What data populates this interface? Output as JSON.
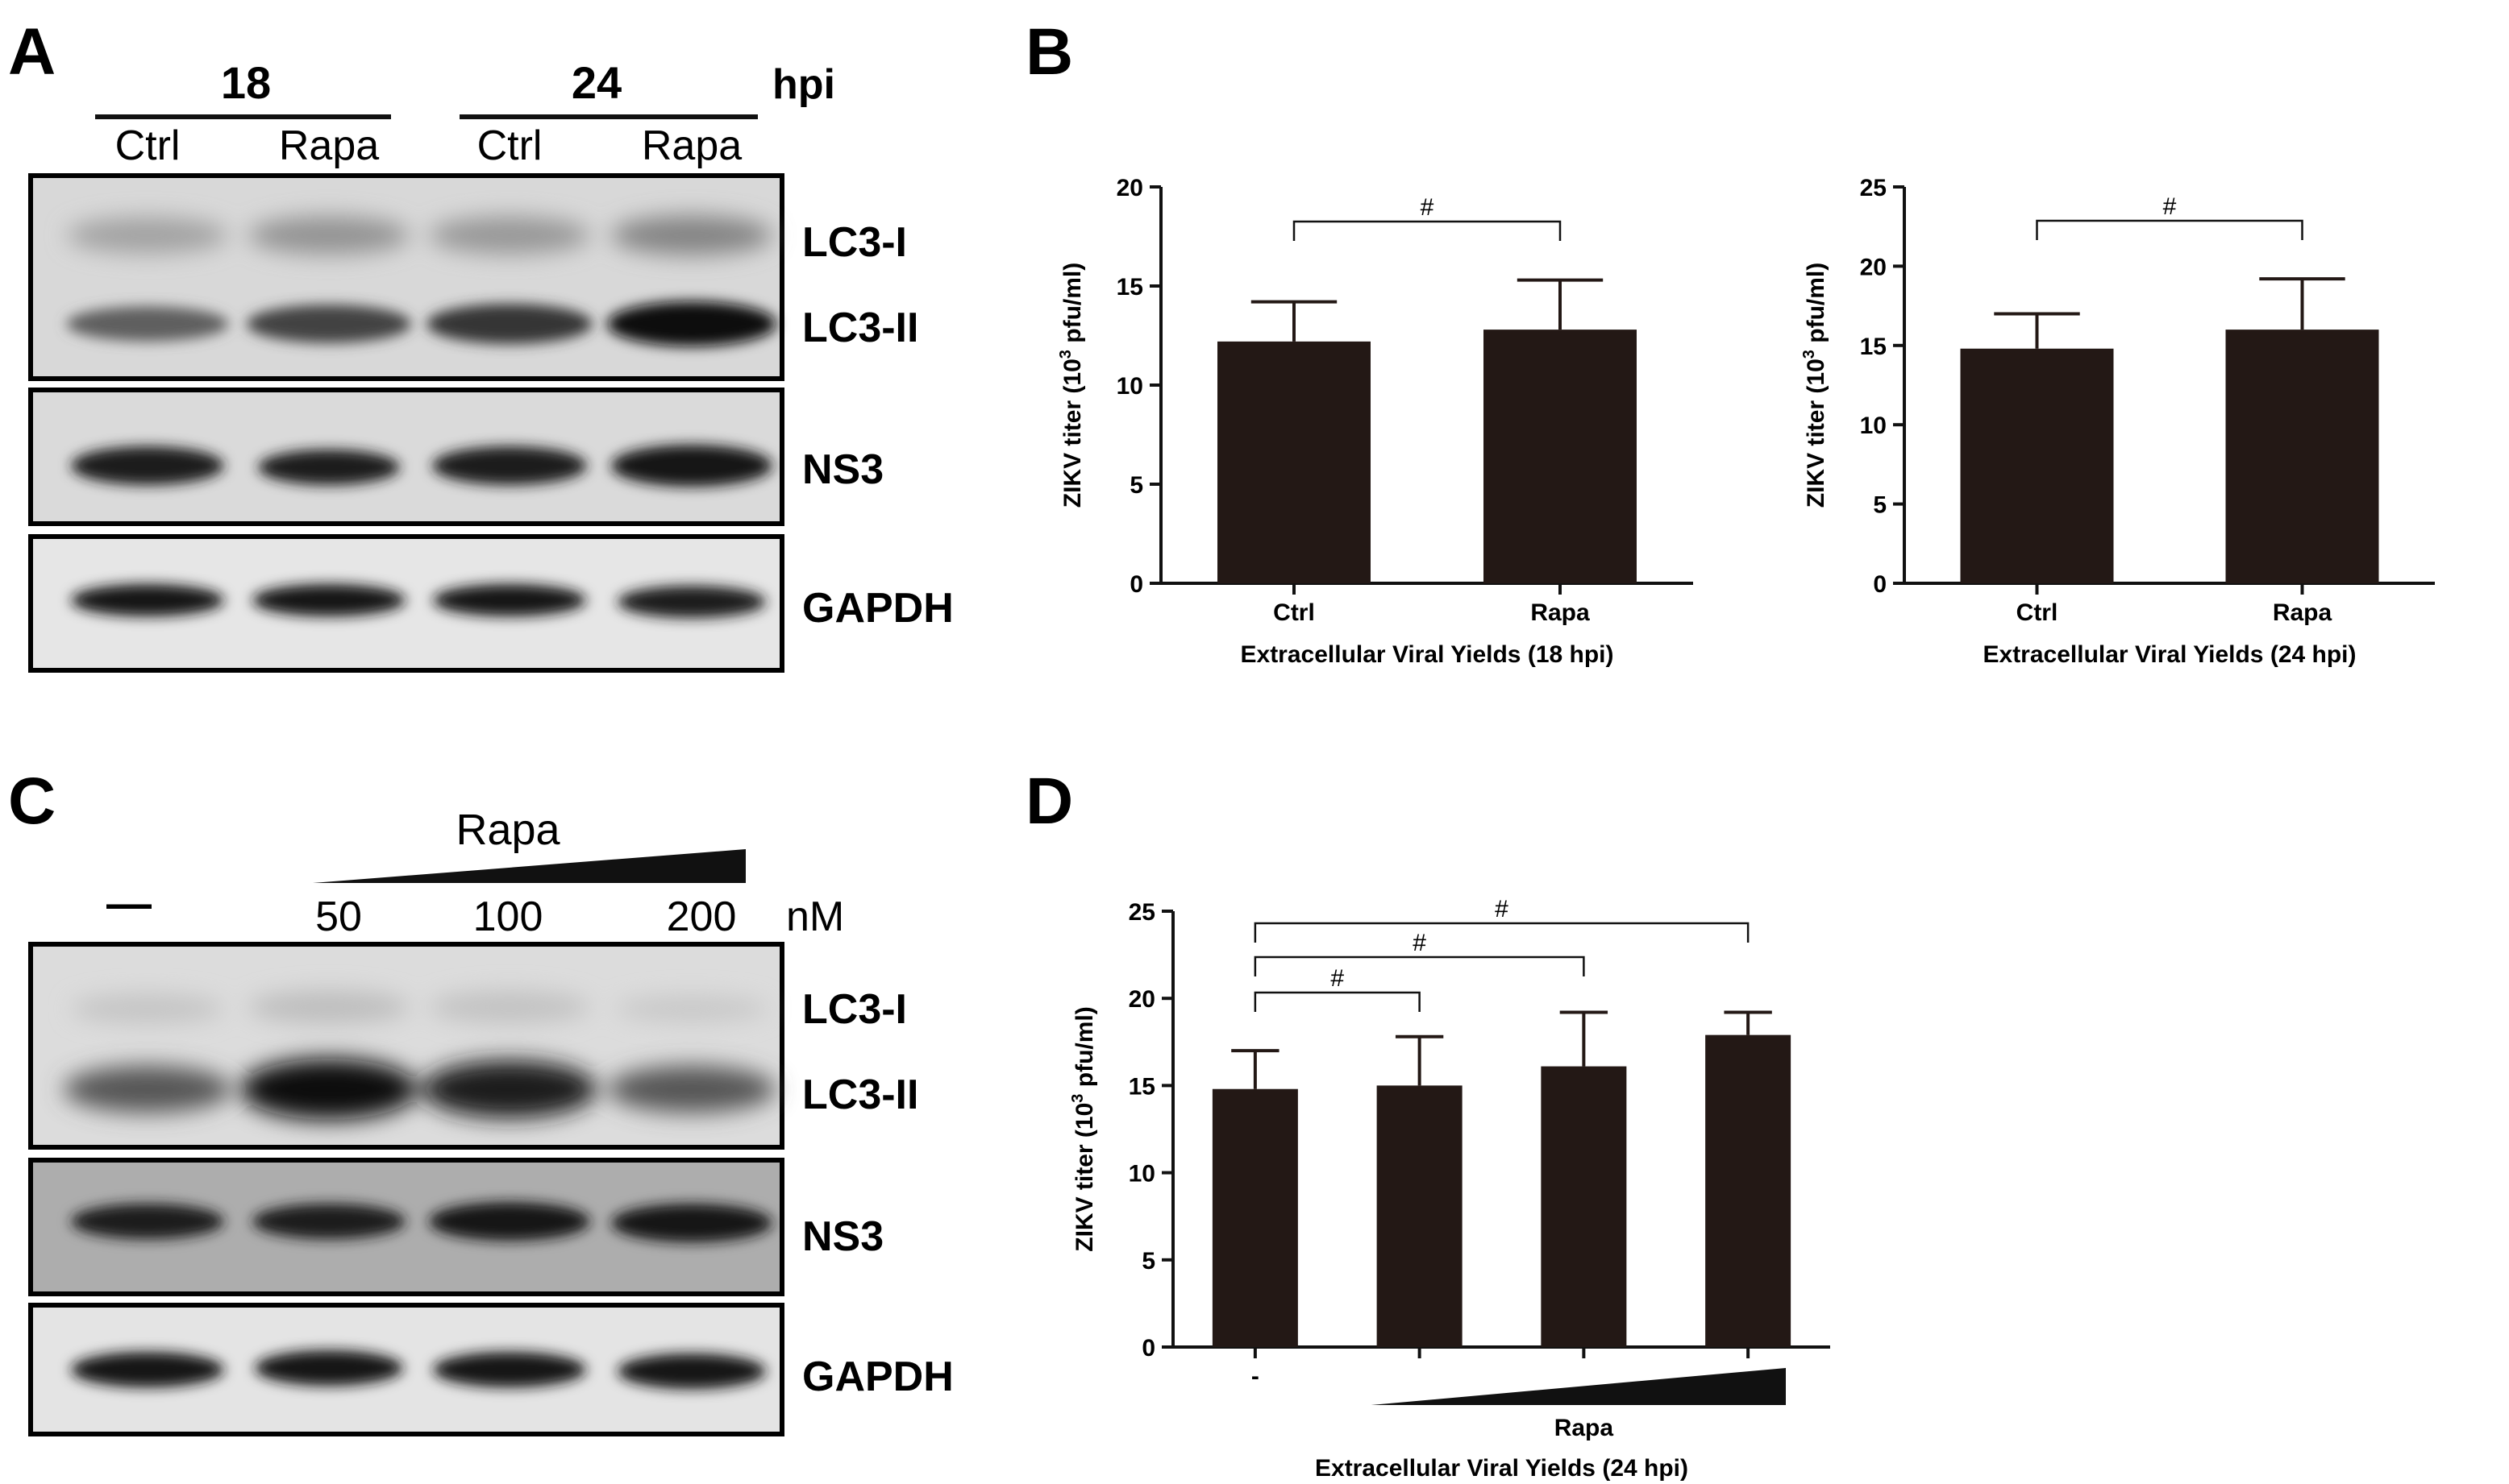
{
  "panel_letters": {
    "a": "A",
    "b": "B",
    "c": "C",
    "d": "D"
  },
  "panel_a": {
    "timepoints": [
      "18",
      "24"
    ],
    "time_unit": "hpi",
    "lanes": [
      "Ctrl",
      "Rapa",
      "Ctrl",
      "Rapa"
    ],
    "bands": {
      "lc3_i": "LC3-I",
      "lc3_ii": "LC3-II",
      "ns3": "NS3",
      "gapdh": "GAPDH"
    },
    "lc3_ii_intensity": [
      0.55,
      0.7,
      0.78,
      1.0
    ],
    "lc3_i_intensity": [
      0.25,
      0.35,
      0.32,
      0.45
    ]
  },
  "panel_c": {
    "treatment": "Rapa",
    "control_lane": "—",
    "doses": [
      "50",
      "100",
      "200"
    ],
    "dose_unit": "nM",
    "bands": {
      "lc3_i": "LC3-I",
      "lc3_ii": "LC3-II",
      "ns3": "NS3",
      "gapdh": "GAPDH"
    },
    "lc3_ii_intensity": [
      0.6,
      1.0,
      0.9,
      0.6
    ]
  },
  "chart_data": [
    {
      "id": "b-left",
      "type": "bar",
      "categories": [
        "Ctrl",
        "Rapa"
      ],
      "values": [
        12.2,
        12.8
      ],
      "errors": [
        2.0,
        2.5
      ],
      "ylim": [
        0,
        20
      ],
      "yticks": [
        "0",
        "5",
        "10",
        "15",
        "20"
      ],
      "ylabel_main": "ZIKV titer (10",
      "ylabel_sup": "3",
      "ylabel_tail": " pfu/ml)",
      "xlabel": "Extracellular Viral Yields (18 hpi)",
      "significance": [
        {
          "from": 0,
          "to": 1,
          "label": "#"
        }
      ],
      "bar_color": "#231815"
    },
    {
      "id": "b-right",
      "type": "bar",
      "categories": [
        "Ctrl",
        "Rapa"
      ],
      "values": [
        14.8,
        16.0
      ],
      "errors": [
        2.2,
        3.2
      ],
      "ylim": [
        0,
        25
      ],
      "yticks": [
        "0",
        "5",
        "10",
        "15",
        "20",
        "25"
      ],
      "ylabel_main": "ZIKV titer (10",
      "ylabel_sup": "3",
      "ylabel_tail": " pfu/ml)",
      "xlabel": "Extracellular Viral Yields (24 hpi)",
      "significance": [
        {
          "from": 0,
          "to": 1,
          "label": "#"
        }
      ],
      "bar_color": "#231815"
    },
    {
      "id": "d",
      "type": "bar",
      "categories": [
        "-",
        "",
        "",
        ""
      ],
      "values": [
        14.8,
        15.0,
        16.1,
        17.9
      ],
      "errors": [
        2.2,
        2.8,
        3.1,
        1.3
      ],
      "ylim": [
        0,
        25
      ],
      "yticks": [
        "0",
        "5",
        "10",
        "15",
        "20",
        "25"
      ],
      "ylabel_main": "ZIKV titer (10",
      "ylabel_sup": "3",
      "ylabel_tail": " pfu/ml)",
      "treatment_label": "Rapa",
      "xlabel": "Extracellular Viral Yields (24 hpi)",
      "significance": [
        {
          "from": 0,
          "to": 1,
          "label": "#"
        },
        {
          "from": 0,
          "to": 2,
          "label": "#"
        },
        {
          "from": 0,
          "to": 3,
          "label": "#"
        }
      ],
      "bar_color": "#231815"
    }
  ]
}
